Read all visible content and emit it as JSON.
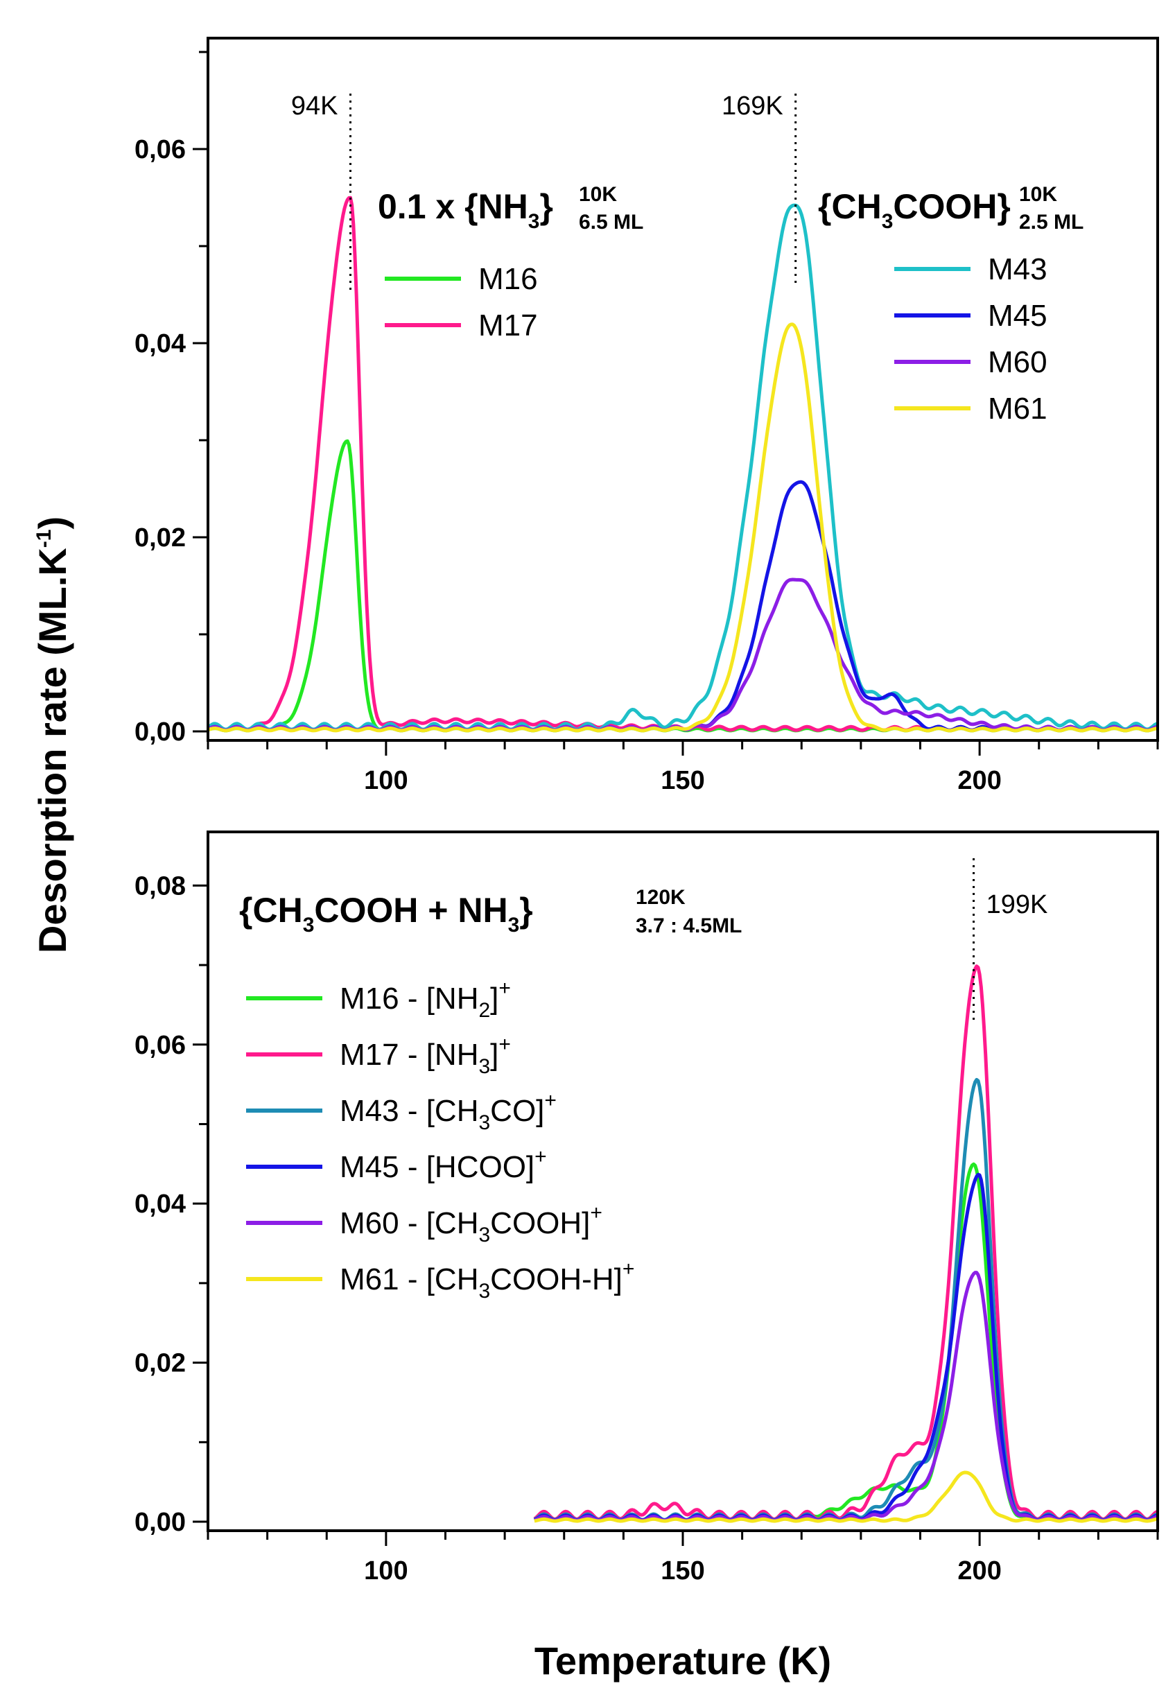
{
  "figure": {
    "y_axis_title": "Desorption rate (ML.K",
    "y_axis_title_sup": "-1",
    "y_axis_title_end": ")",
    "x_axis_title": "Temperature (K)"
  },
  "chart_data": [
    {
      "type": "line",
      "xlim": [
        70,
        230
      ],
      "ylim": [
        0,
        0.07
      ],
      "x_ticks": [
        100,
        150,
        200
      ],
      "x_tick_labels": [
        "100",
        "150",
        "200"
      ],
      "y_ticks": [
        0,
        0.02,
        0.04,
        0.06
      ],
      "y_tick_labels": [
        "0,00",
        "0,02",
        "0,04",
        "0,06"
      ],
      "title_groups": [
        {
          "prefix": "0.1 x {NH",
          "sub": "3",
          "suffix": "}",
          "sup": "10K",
          "sub2": "6.5 ML"
        },
        {
          "prefix": "{CH",
          "sub": "3",
          "suffix": "COOH}",
          "sup": "10K",
          "sub2": "2.5 ML"
        }
      ],
      "peak_labels": [
        {
          "label": "94K",
          "x": 94
        },
        {
          "label": "169K",
          "x": 169
        }
      ],
      "legend_left": [
        "M16",
        "M17"
      ],
      "legend_right": [
        "M43",
        "M45",
        "M60",
        "M61"
      ],
      "series": [
        {
          "name": "M16",
          "color": "#22e822",
          "baseline": 0.0002,
          "peaks": [
            {
              "c": 93.5,
              "h": 0.0296,
              "wl": 3.8,
              "wr": 1.6
            }
          ],
          "x_start": 70,
          "x_end": 230
        },
        {
          "name": "M17",
          "color": "#ff1a8c",
          "baseline": 0.0003,
          "peaks": [
            {
              "c": 94,
              "h": 0.0545,
              "wl": 4.8,
              "wr": 1.6
            },
            {
              "c": 110,
              "h": 0.0008,
              "wl": 8,
              "wr": 18
            }
          ],
          "x_start": 70,
          "x_end": 230
        },
        {
          "name": "M43",
          "color": "#1ec0c8",
          "baseline": 0.0005,
          "peaks": [
            {
              "c": 169,
              "h": 0.054,
              "wl": 6.4,
              "wr": 4.6
            },
            {
              "c": 142,
              "h": 0.0015,
              "wl": 2,
              "wr": 2
            },
            {
              "c": 185,
              "h": 0.003,
              "wl": 4,
              "wr": 5
            },
            {
              "c": 197,
              "h": 0.0015,
              "wl": 5,
              "wr": 10
            }
          ],
          "x_start": 70,
          "x_end": 230
        },
        {
          "name": "M45",
          "color": "#1414e6",
          "baseline": 0.0003,
          "peaks": [
            {
              "c": 169.5,
              "h": 0.0255,
              "wl": 5.4,
              "wr": 5.5
            },
            {
              "c": 185,
              "h": 0.003,
              "wl": 2,
              "wr": 2.5
            }
          ],
          "x_start": 70,
          "x_end": 230
        },
        {
          "name": "M60",
          "color": "#8c1ee6",
          "baseline": 0.0003,
          "peaks": [
            {
              "c": 169,
              "h": 0.0155,
              "wl": 5.5,
              "wr": 6.2
            },
            {
              "c": 188,
              "h": 0.0015,
              "wl": 4,
              "wr": 8
            }
          ],
          "x_start": 70,
          "x_end": 230
        },
        {
          "name": "M61",
          "color": "#f5e61e",
          "baseline": 0.0002,
          "peaks": [
            {
              "c": 168.5,
              "h": 0.0418,
              "wl": 5.4,
              "wr": 4.2
            }
          ],
          "x_start": 70,
          "x_end": 230
        }
      ]
    },
    {
      "type": "line",
      "xlim": [
        70,
        230
      ],
      "ylim": [
        0,
        0.085
      ],
      "x_ticks": [
        100,
        150,
        200
      ],
      "x_tick_labels": [
        "100",
        "150",
        "200"
      ],
      "y_ticks": [
        0,
        0.02,
        0.04,
        0.06,
        0.08
      ],
      "y_tick_labels": [
        "0,00",
        "0,02",
        "0,04",
        "0,06",
        "0,08"
      ],
      "title_groups": [
        {
          "prefix": "{CH",
          "sub": "3",
          "suffix": "COOH + NH",
          "sub_b": "3",
          "suffix_b": "}",
          "sup": "120K",
          "sub2": "3.7 : 4.5ML"
        }
      ],
      "peak_labels": [
        {
          "label": "199K",
          "x": 199
        }
      ],
      "legend": [
        {
          "main": "M16 - [NH",
          "sub": "2",
          "end": "]",
          "sup": "+"
        },
        {
          "main": "M17 - [NH",
          "sub": "3",
          "end": "]",
          "sup": "+"
        },
        {
          "main": "M43 - [CH",
          "sub": "3",
          "end": "CO]",
          "sup": "+"
        },
        {
          "main": "M45 - [HCOO]",
          "sub": "",
          "end": "",
          "sup": "+"
        },
        {
          "main": "M60 - [CH",
          "sub": "3",
          "end": "COOH]",
          "sup": "+"
        },
        {
          "main": "M61 - [CH",
          "sub": "3",
          "end": "COOH-H]",
          "sup": "+"
        }
      ],
      "series": [
        {
          "name": "M16 - [NH2]+",
          "color": "#22e822",
          "baseline": 0.0004,
          "peaks": [
            {
              "c": 199,
              "h": 0.0445,
              "wl": 3.2,
              "wr": 2.5
            },
            {
              "c": 185,
              "h": 0.004,
              "wl": 6,
              "wr": 6
            }
          ],
          "x_start": 125,
          "x_end": 230
        },
        {
          "name": "M17 - [NH3]+",
          "color": "#ff1a8c",
          "baseline": 0.0008,
          "peaks": [
            {
              "c": 199.5,
              "h": 0.069,
              "wl": 3.5,
              "wr": 2.5
            },
            {
              "c": 188,
              "h": 0.008,
              "wl": 4,
              "wr": 4
            },
            {
              "c": 147,
              "h": 0.0012,
              "wl": 3,
              "wr": 3
            }
          ],
          "x_start": 125,
          "x_end": 230
        },
        {
          "name": "M43 - [CH3CO]+",
          "color": "#1e8cb4",
          "baseline": 0.0006,
          "peaks": [
            {
              "c": 199.5,
              "h": 0.055,
              "wl": 3.2,
              "wr": 2.4
            },
            {
              "c": 190,
              "h": 0.006,
              "wl": 4,
              "wr": 3
            }
          ],
          "x_start": 125,
          "x_end": 230
        },
        {
          "name": "M45 - [HCOO]+",
          "color": "#1414e6",
          "baseline": 0.0005,
          "peaks": [
            {
              "c": 199.8,
              "h": 0.043,
              "wl": 3.8,
              "wr": 2.3
            },
            {
              "c": 191,
              "h": 0.005,
              "wl": 4,
              "wr": 3
            }
          ],
          "x_start": 125,
          "x_end": 230
        },
        {
          "name": "M60 - [CH3COOH]+",
          "color": "#8c1ee6",
          "baseline": 0.0004,
          "peaks": [
            {
              "c": 199.3,
              "h": 0.031,
              "wl": 3.5,
              "wr": 2.6
            },
            {
              "c": 191,
              "h": 0.003,
              "wl": 4,
              "wr": 3
            }
          ],
          "x_start": 125,
          "x_end": 230
        },
        {
          "name": "M61 - [CH3COOH-H]+",
          "color": "#f5e61e",
          "baseline": 0.0002,
          "peaks": [
            {
              "c": 198,
              "h": 0.006,
              "wl": 3.5,
              "wr": 2.5
            }
          ],
          "x_start": 125,
          "x_end": 230
        }
      ]
    }
  ]
}
